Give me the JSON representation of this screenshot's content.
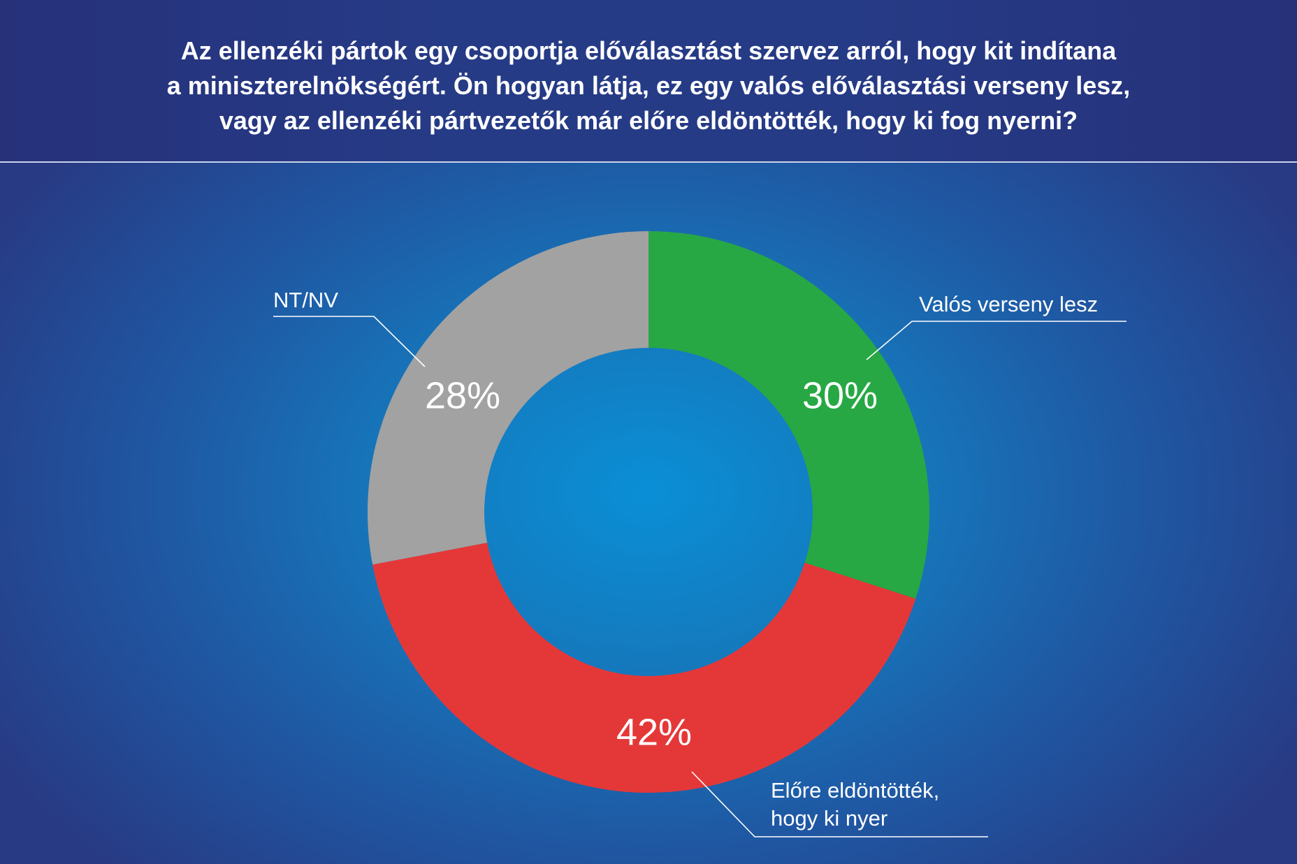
{
  "header": {
    "title": "Az ellenzéki pártok egy csoportja előválasztást szervez arról, hogy kit indítana\na miniszterelnökségért. Ön hogyan látja, ez egy valós előválasztási verseny lesz,\nvagy az ellenzéki pártvezetők már előre eldöntötték, hogy ki fog nyerni?"
  },
  "chart_data": {
    "type": "pie",
    "donut": true,
    "slices": [
      {
        "label": "Valós verseny lesz",
        "label_lines": [
          "Valós verseny lesz"
        ],
        "value": 30,
        "value_label": "30%",
        "color": "#27a844"
      },
      {
        "label": "Előre eldöntötték, hogy ki nyer",
        "label_lines": [
          "Előre eldöntötték,",
          "hogy ki nyer"
        ],
        "value": 42,
        "value_label": "42%",
        "color": "#e43838"
      },
      {
        "label": "NT/NV",
        "label_lines": [
          "NT/NV"
        ],
        "value": 28,
        "value_label": "28%",
        "color": "#a2a2a2"
      }
    ]
  }
}
